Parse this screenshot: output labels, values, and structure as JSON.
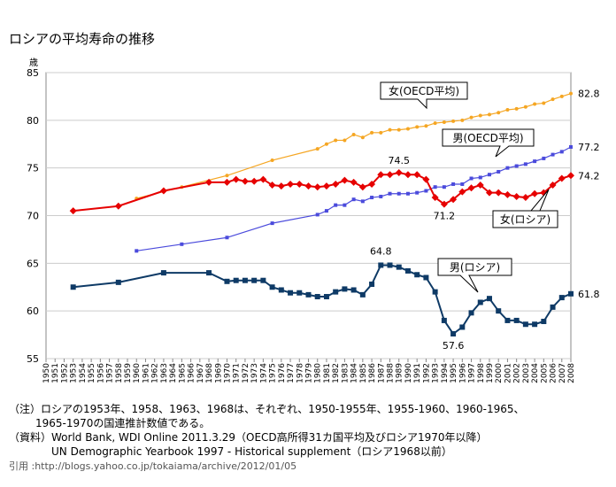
{
  "chart_data": {
    "type": "line",
    "title": "ロシアの平均寿命の推移",
    "y_label": "歳",
    "ylim": [
      55,
      85
    ],
    "yticks": [
      55,
      60,
      65,
      70,
      75,
      80,
      85
    ],
    "xlim": [
      1950,
      2008
    ],
    "xticks": [
      1950,
      1951,
      1952,
      1953,
      1954,
      1955,
      1956,
      1957,
      1958,
      1959,
      1960,
      1961,
      1962,
      1963,
      1964,
      1965,
      1966,
      1967,
      1968,
      1969,
      1970,
      1971,
      1972,
      1973,
      1974,
      1975,
      1976,
      1977,
      1978,
      1979,
      1980,
      1981,
      1982,
      1983,
      1984,
      1985,
      1986,
      1987,
      1988,
      1989,
      1990,
      1991,
      1992,
      1993,
      1994,
      1995,
      1996,
      1997,
      1998,
      1999,
      2000,
      2001,
      2002,
      2003,
      2004,
      2005,
      2006,
      2007,
      2008
    ],
    "grid": true,
    "series": [
      {
        "name": "女(OECD平均)",
        "color": "#f5a623",
        "marker": "dot",
        "x": [
          1960,
          1965,
          1970,
          1975,
          1980,
          1981,
          1982,
          1983,
          1984,
          1985,
          1986,
          1987,
          1988,
          1989,
          1990,
          1991,
          1992,
          1993,
          1994,
          1995,
          1996,
          1997,
          1998,
          1999,
          2000,
          2001,
          2002,
          2003,
          2004,
          2005,
          2006,
          2007,
          2008
        ],
        "values": [
          71.8,
          73.0,
          74.2,
          75.8,
          77.0,
          77.5,
          77.9,
          77.9,
          78.5,
          78.2,
          78.7,
          78.7,
          79.0,
          79.0,
          79.1,
          79.3,
          79.4,
          79.7,
          79.8,
          79.9,
          80.0,
          80.3,
          80.5,
          80.6,
          80.8,
          81.1,
          81.2,
          81.4,
          81.7,
          81.8,
          82.2,
          82.5,
          82.8
        ]
      },
      {
        "name": "男(OECD平均)",
        "color": "#4b4bdc",
        "marker": "square-small",
        "x": [
          1960,
          1965,
          1970,
          1975,
          1980,
          1981,
          1982,
          1983,
          1984,
          1985,
          1986,
          1987,
          1988,
          1989,
          1990,
          1991,
          1992,
          1993,
          1994,
          1995,
          1996,
          1997,
          1998,
          1999,
          2000,
          2001,
          2002,
          2003,
          2004,
          2005,
          2006,
          2007,
          2008
        ],
        "values": [
          66.3,
          67.0,
          67.7,
          69.2,
          70.1,
          70.5,
          71.1,
          71.1,
          71.7,
          71.5,
          71.9,
          72.0,
          72.3,
          72.3,
          72.3,
          72.4,
          72.6,
          73.0,
          73.0,
          73.3,
          73.3,
          73.9,
          74.0,
          74.3,
          74.6,
          75.0,
          75.2,
          75.4,
          75.7,
          76.0,
          76.4,
          76.7,
          77.2
        ]
      },
      {
        "name": "女(ロシア)",
        "color": "#e60000",
        "marker": "diamond",
        "x": [
          1953,
          1958,
          1963,
          1968,
          1970,
          1971,
          1972,
          1973,
          1974,
          1975,
          1976,
          1977,
          1978,
          1979,
          1980,
          1981,
          1982,
          1983,
          1984,
          1985,
          1986,
          1987,
          1988,
          1989,
          1990,
          1991,
          1992,
          1993,
          1994,
          1995,
          1996,
          1997,
          1998,
          1999,
          2000,
          2001,
          2002,
          2003,
          2004,
          2005,
          2006,
          2007,
          2008
        ],
        "values": [
          70.5,
          71.0,
          72.6,
          73.5,
          73.5,
          73.8,
          73.6,
          73.6,
          73.8,
          73.2,
          73.1,
          73.3,
          73.3,
          73.1,
          73.0,
          73.1,
          73.3,
          73.7,
          73.5,
          73.0,
          73.3,
          74.3,
          74.3,
          74.5,
          74.3,
          74.3,
          73.8,
          71.9,
          71.2,
          71.7,
          72.5,
          72.9,
          73.2,
          72.4,
          72.4,
          72.2,
          72.0,
          71.9,
          72.3,
          72.4,
          73.2,
          73.9,
          74.2
        ]
      },
      {
        "name": "男(ロシア)",
        "color": "#0e3a66",
        "marker": "square",
        "x": [
          1953,
          1958,
          1963,
          1968,
          1970,
          1971,
          1972,
          1973,
          1974,
          1975,
          1976,
          1977,
          1978,
          1979,
          1980,
          1981,
          1982,
          1983,
          1984,
          1985,
          1986,
          1987,
          1988,
          1989,
          1990,
          1991,
          1992,
          1993,
          1994,
          1995,
          1996,
          1997,
          1998,
          1999,
          2000,
          2001,
          2002,
          2003,
          2004,
          2005,
          2006,
          2007,
          2008
        ],
        "values": [
          62.5,
          63.0,
          64.0,
          64.0,
          63.1,
          63.2,
          63.2,
          63.2,
          63.2,
          62.5,
          62.2,
          61.9,
          61.9,
          61.7,
          61.5,
          61.5,
          62.0,
          62.3,
          62.2,
          61.7,
          62.8,
          64.8,
          64.8,
          64.6,
          64.2,
          63.8,
          63.5,
          62.0,
          59.0,
          57.6,
          58.3,
          59.8,
          60.9,
          61.3,
          60.0,
          59.0,
          59.0,
          58.6,
          58.6,
          58.9,
          60.4,
          61.4,
          61.8
        ]
      }
    ],
    "notes": [
      "（注）ロシアの1953年、1958、1963、1968は、それぞれ、1950-1955年、1955-1960、1960-1965、",
      "1965-1970の国連推計数値である。",
      "（資料）World Bank, WDI Online 2011.3.29（OECD高所得31カ国平均及びロシア1970年以降）",
      "UN Demographic Yearbook 1997 - Historical supplement（ロシア1968以前）",
      "引用 :http://blogs.yahoo.co.jp/tokaiama/archive/2012/01/05"
    ]
  }
}
